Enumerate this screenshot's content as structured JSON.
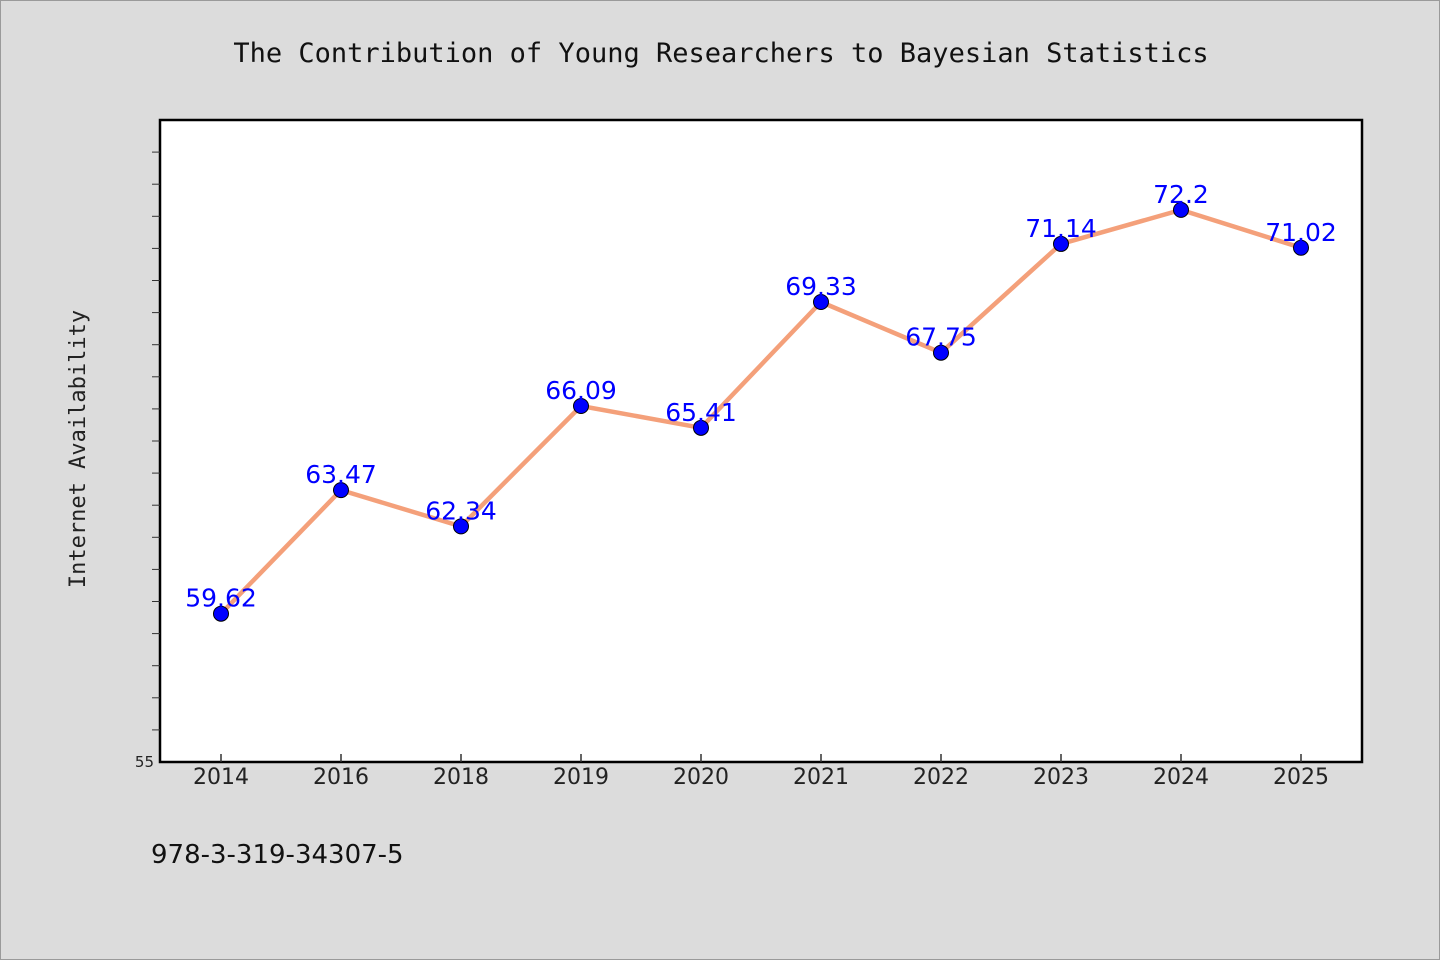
{
  "footer_text": "978-3-319-34307-5",
  "colors": {
    "background": "#dcdcdc",
    "plot_background": "#ffffff",
    "line": "#f4a07a",
    "marker": "#0000ff",
    "data_label": "#0000ff"
  },
  "chart_data": {
    "type": "line",
    "title": "The Contribution of Young Researchers to Bayesian Statistics",
    "xlabel": "",
    "ylabel": "Internet Availability",
    "categories": [
      "2014",
      "2016",
      "2018",
      "2019",
      "2020",
      "2021",
      "2022",
      "2023",
      "2024",
      "2025"
    ],
    "series": [
      {
        "values": [
          59.62,
          63.47,
          62.34,
          66.09,
          65.41,
          69.33,
          67.75,
          71.14,
          72.2,
          71.02
        ],
        "data_labels": [
          "59.62",
          "63.47",
          "62.34",
          "66.09",
          "65.41",
          "69.33",
          "67.75",
          "71.14",
          "72.2",
          "71.02"
        ]
      }
    ],
    "ylim": [
      55,
      75
    ],
    "y_tick_labels": [
      "55"
    ],
    "grid": false,
    "legend": "none"
  }
}
